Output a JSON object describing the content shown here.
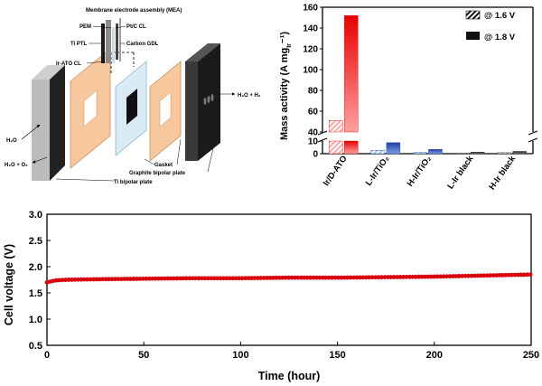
{
  "schematic": {
    "mea_title": "Membrane electrode assembly (MEA)",
    "labels": {
      "pem": "PEM",
      "ptc_cl": "Pt/C CL",
      "ti_ptl": "Ti PTL",
      "carbon_gdl": "Carbon GDL",
      "ir_ato_cl": "Ir-ATO CL",
      "water_in": "H₂O",
      "water_o2_out": "H₂O + O₂",
      "water_h2_out": "H₂O + H₂",
      "gasket": "Gasket",
      "graphite_plate": "Graphite bipolar plate",
      "ti_plate": "Ti bipolar plate"
    }
  },
  "colors": {
    "red_light": "#f8aaaa",
    "red_dark": "#e00000",
    "blue_light": "#a9c4ea",
    "blue_dark": "#1a3fa8",
    "grey_light": "#b8b8b8",
    "grey_dark": "#222222",
    "gasket": "#f7c89e",
    "voltage_line": "#d9000e"
  },
  "chart_data": [
    {
      "type": "bar",
      "title": "",
      "xlabel": "",
      "ylabel": "Mass activity (A mg",
      "ylabel_sub": "Ir",
      "ylabel_tail": "⁻¹)",
      "categories": [
        "Ir/D-ATO",
        "L-Ir/TiO₂",
        "H-Ir/TiO₂",
        "L-Ir black",
        "H-Ir black"
      ],
      "series": [
        {
          "name": "@ 1.6 V",
          "values": [
            51,
            2.7,
            1.0,
            0.6,
            0.8
          ],
          "pattern": "hatched"
        },
        {
          "name": "@ 1.8 V",
          "values": [
            152,
            8.7,
            3.4,
            1.3,
            1.8
          ],
          "pattern": "solid"
        }
      ],
      "axis_break": {
        "lower": [
          0,
          10
        ],
        "upper": [
          40,
          160
        ]
      },
      "lower_ticks": [
        0,
        10
      ],
      "upper_ticks": [
        40,
        60,
        80,
        100,
        120,
        140,
        160
      ],
      "legend_position": "top-right"
    },
    {
      "type": "line",
      "title": "",
      "xlabel": "Time (hour)",
      "ylabel": "Cell voltage (V)",
      "xlim": [
        0,
        250
      ],
      "ylim": [
        0.5,
        3.0
      ],
      "xticks": [
        0,
        50,
        100,
        150,
        200,
        250
      ],
      "yticks": [
        0.5,
        1.0,
        1.5,
        2.0,
        2.5,
        3.0
      ],
      "x": [
        0,
        2,
        5,
        10,
        25,
        50,
        75,
        100,
        125,
        150,
        175,
        200,
        225,
        250
      ],
      "y": [
        1.7,
        1.72,
        1.74,
        1.75,
        1.76,
        1.77,
        1.78,
        1.78,
        1.79,
        1.79,
        1.8,
        1.81,
        1.83,
        1.85
      ],
      "marker": "circle"
    }
  ]
}
